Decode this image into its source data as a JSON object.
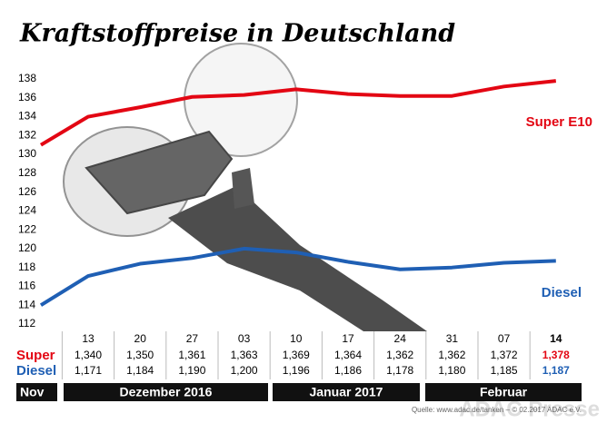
{
  "chart_data": {
    "type": "line",
    "title": "Kraftstoffpreise in Deutschland",
    "categories": [
      null,
      "13",
      "20",
      "27",
      "03",
      "10",
      "17",
      "24",
      "31",
      "07",
      "14"
    ],
    "ylim": [
      112,
      138
    ],
    "yticks": [
      112,
      114,
      116,
      118,
      120,
      122,
      124,
      126,
      128,
      130,
      132,
      134,
      136,
      138
    ],
    "series": [
      {
        "name": "Super E10",
        "color": "#e30613",
        "values": [
          131.0,
          134.0,
          135.0,
          136.1,
          136.3,
          136.9,
          136.4,
          136.2,
          136.2,
          137.2,
          137.8
        ],
        "value_labels": [
          null,
          "1,340",
          "1,350",
          "1,361",
          "1,363",
          "1,369",
          "1,364",
          "1,362",
          "1,362",
          "1,372",
          "1,378"
        ]
      },
      {
        "name": "Diesel",
        "color": "#1f5fb4",
        "values": [
          114.0,
          117.1,
          118.4,
          119.0,
          120.0,
          119.6,
          118.6,
          117.8,
          118.0,
          118.5,
          118.7
        ],
        "value_labels": [
          null,
          "1,171",
          "1,184",
          "1,190",
          "1,200",
          "1,196",
          "1,186",
          "1,178",
          "1,180",
          "1,185",
          "1,187"
        ]
      }
    ],
    "row_labels": [
      "Super",
      "Diesel"
    ],
    "periods": [
      "Nov",
      "Dezember 2016",
      "Januar 2017",
      "Februar"
    ],
    "source": "Quelle: www.adac.de/tanken – © 02.2017 ADAC e.V.",
    "watermark": "ADAC Presse"
  }
}
